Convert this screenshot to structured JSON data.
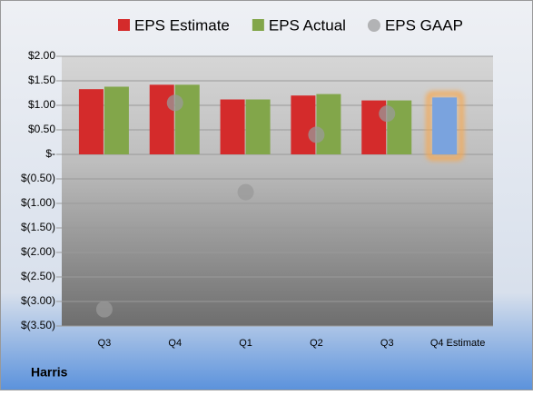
{
  "chart_data": {
    "type": "bar",
    "categories": [
      "Q3",
      "Q4",
      "Q1",
      "Q2",
      "Q3",
      "Q4 Estimate"
    ],
    "series": [
      {
        "name": "EPS Estimate",
        "color": "#d42b2b",
        "values": [
          1.33,
          1.42,
          1.12,
          1.2,
          1.1,
          1.16
        ]
      },
      {
        "name": "EPS Actual",
        "color": "#82a64a",
        "values": [
          1.38,
          1.42,
          1.12,
          1.23,
          1.1,
          null
        ]
      },
      {
        "name": "EPS GAAP",
        "type": "scatter",
        "color": "#9a9a9a",
        "values": [
          -3.16,
          1.05,
          -0.77,
          0.4,
          0.83,
          null
        ]
      }
    ],
    "highlight": {
      "index": 5,
      "color": "#7aa3de",
      "glow": "#f6a851"
    },
    "ylim": [
      -3.5,
      2
    ],
    "yticks": [
      {
        "value": 2,
        "label": "$2.00"
      },
      {
        "value": 1.5,
        "label": "$1.50"
      },
      {
        "value": 1,
        "label": "$1.00"
      },
      {
        "value": 0.5,
        "label": "$0.50"
      },
      {
        "value": 0,
        "label": "$-"
      },
      {
        "value": -0.5,
        "label": "$(0.50)"
      },
      {
        "value": -1,
        "label": "$(1.00)"
      },
      {
        "value": -1.5,
        "label": "$(1.50)"
      },
      {
        "value": -2,
        "label": "$(2.00)"
      },
      {
        "value": -2.5,
        "label": "$(2.50)"
      },
      {
        "value": -3,
        "label": "$(3.00)"
      },
      {
        "value": -3.5,
        "label": "$(3.50)"
      }
    ],
    "grid": true,
    "legend": "top",
    "footer": "Harris"
  }
}
